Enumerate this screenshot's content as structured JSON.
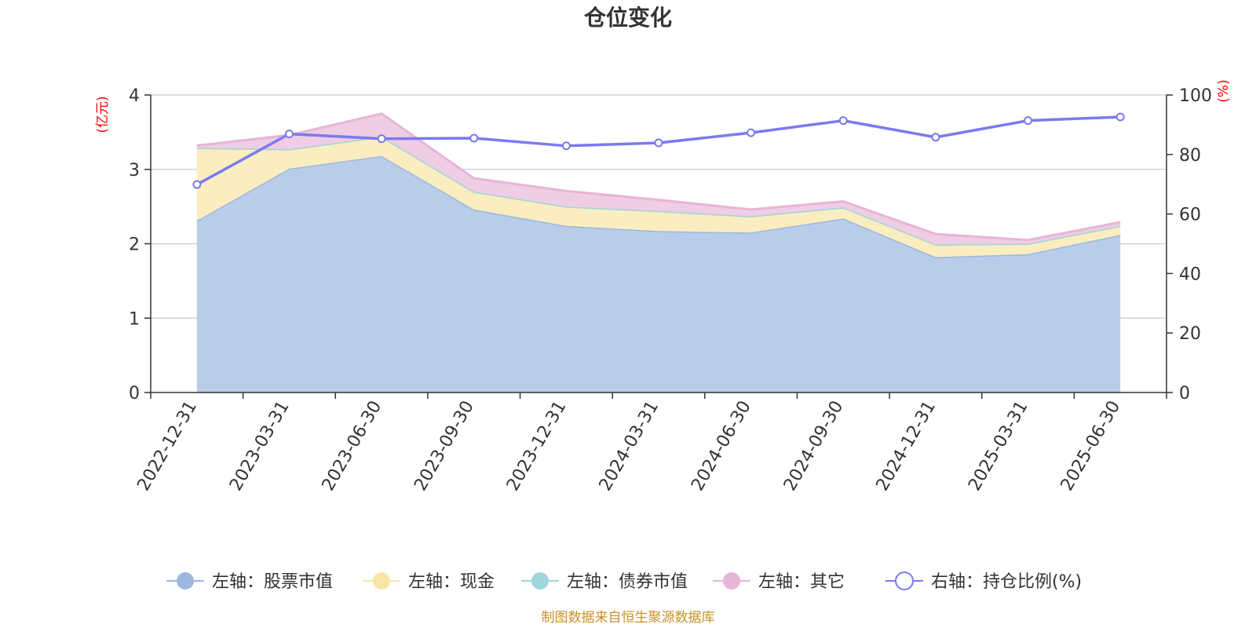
{
  "chart_data": {
    "type": "area",
    "title": "仓位变化",
    "categories": [
      "2022-12-31",
      "2023-03-31",
      "2023-06-30",
      "2023-09-30",
      "2023-12-31",
      "2024-03-31",
      "2024-06-30",
      "2024-09-30",
      "2024-12-31",
      "2025-03-31",
      "2025-06-30"
    ],
    "left_axis": {
      "unit_label": "(亿元)",
      "range": [
        0,
        4
      ],
      "ticks": [
        "0",
        "1",
        "2",
        "3",
        "4"
      ]
    },
    "right_axis": {
      "unit_label": "(%)",
      "range": [
        0,
        100
      ],
      "ticks": [
        "0",
        "20",
        "40",
        "60",
        "80",
        "100"
      ]
    },
    "grid": true,
    "stacked": true,
    "series": [
      {
        "name": "左轴：股票市值",
        "axis": "left",
        "kind": "area",
        "color": "#9cb8e0",
        "fill": "#b9cdea",
        "values": [
          2.31,
          3.01,
          3.18,
          2.46,
          2.24,
          2.17,
          2.15,
          2.34,
          1.82,
          1.86,
          2.12
        ]
      },
      {
        "name": "左轴：现金",
        "axis": "left",
        "kind": "area",
        "color": "#f8e5a6",
        "fill": "#faedbf",
        "values": [
          0.98,
          0.26,
          0.26,
          0.24,
          0.26,
          0.27,
          0.22,
          0.15,
          0.17,
          0.14,
          0.12
        ]
      },
      {
        "name": "左轴：债券市值",
        "axis": "left",
        "kind": "area",
        "color": "#9fd6d8",
        "fill": "#b9e2e3",
        "values": [
          0,
          0,
          0,
          0,
          0,
          0,
          0,
          0,
          0,
          0,
          0
        ]
      },
      {
        "name": "左轴：其它",
        "axis": "left",
        "kind": "area",
        "color": "#e7b5d8",
        "fill": "#efcde5",
        "values": [
          0.03,
          0.19,
          0.31,
          0.18,
          0.21,
          0.15,
          0.09,
          0.08,
          0.14,
          0.05,
          0.05
        ]
      },
      {
        "name": "右轴：持仓比例(%)",
        "axis": "right",
        "kind": "line",
        "color": "#7a7af0",
        "values": [
          69.9,
          86.9,
          85.3,
          85.5,
          82.9,
          83.9,
          87.3,
          91.4,
          85.8,
          91.4,
          92.6
        ]
      }
    ],
    "legend_position": "bottom",
    "source_note": "制图数据来自恒生聚源数据库"
  }
}
